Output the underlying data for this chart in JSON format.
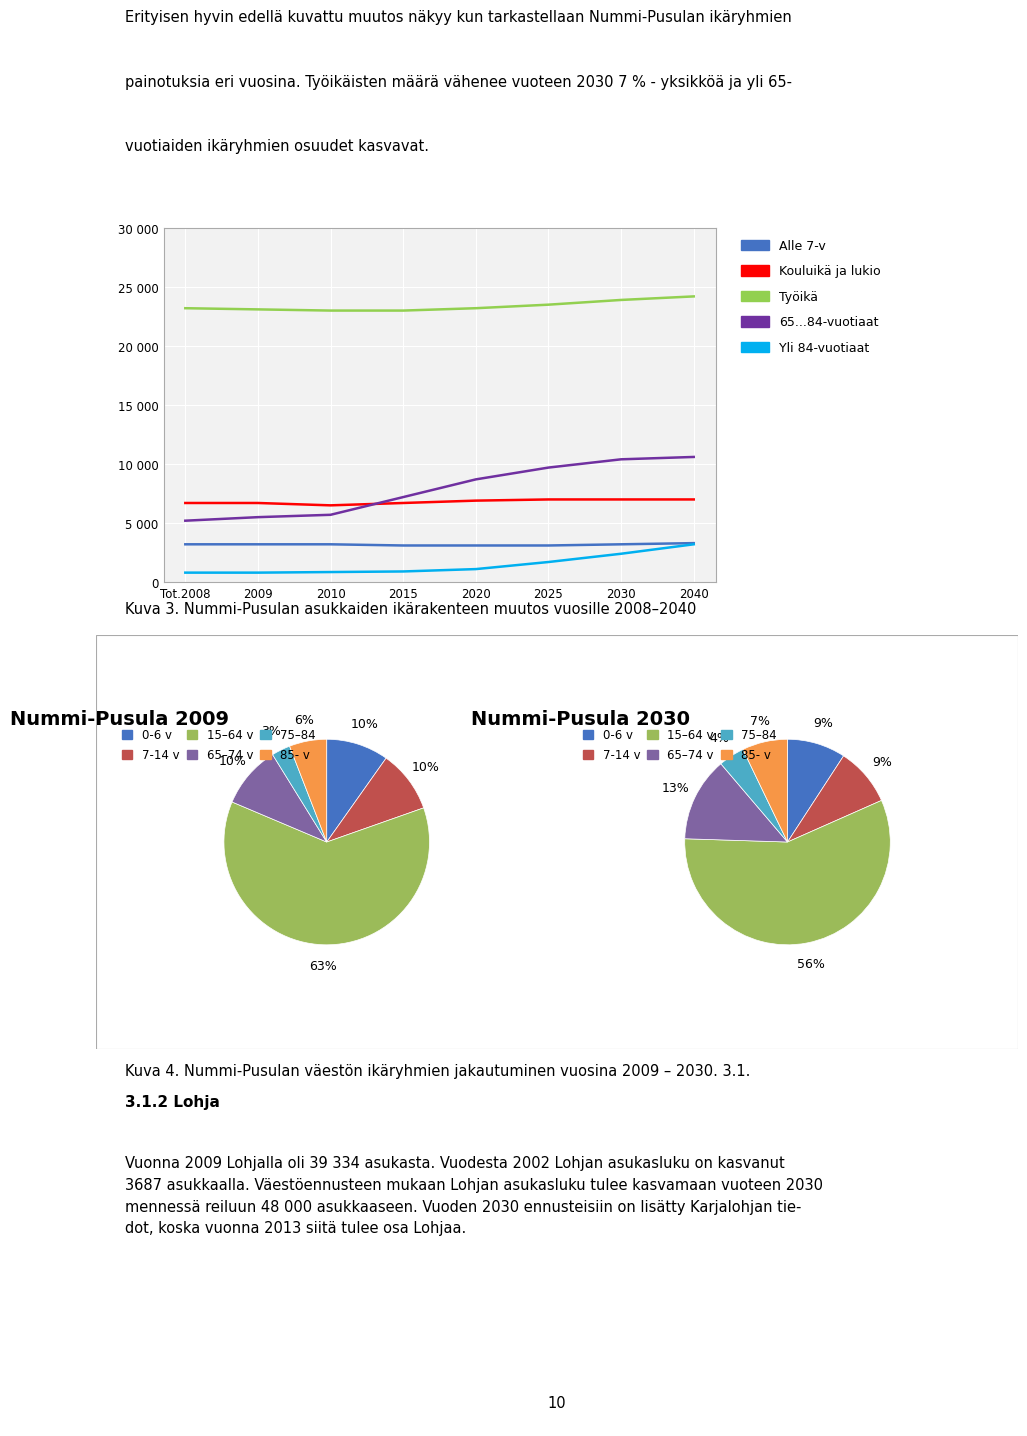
{
  "line_chart": {
    "x_labels": [
      "Tot.2008",
      "2009",
      "2010",
      "2015",
      "2020",
      "2025",
      "2030",
      "2040"
    ],
    "x_values": [
      0,
      1,
      2,
      3,
      4,
      5,
      6,
      7
    ],
    "series": [
      {
        "name": "Alle 7-v",
        "color": "#4472C4",
        "values": [
          3200,
          3200,
          3200,
          3100,
          3100,
          3100,
          3200,
          3300
        ]
      },
      {
        "name": "Kouluikä ja lukio",
        "color": "#FF0000",
        "values": [
          6700,
          6700,
          6500,
          6700,
          6900,
          7000,
          7000,
          7000
        ]
      },
      {
        "name": "Työikä",
        "color": "#92D050",
        "values": [
          23200,
          23100,
          23000,
          23000,
          23200,
          23500,
          23900,
          24200
        ]
      },
      {
        "name": "65...84-vuotiaat",
        "color": "#7030A0",
        "values": [
          5200,
          5500,
          5700,
          7200,
          8700,
          9700,
          10400,
          10600
        ]
      },
      {
        "name": "Yli 84-vuotiaat",
        "color": "#00B0F0",
        "values": [
          800,
          800,
          850,
          900,
          1100,
          1700,
          2400,
          3200
        ]
      }
    ],
    "ylim": [
      0,
      30000
    ],
    "yticks": [
      0,
      5000,
      10000,
      15000,
      20000,
      25000,
      30000
    ],
    "plot_bg_color": "#F2F2F2",
    "grid_color": "#FFFFFF"
  },
  "pie_2009": {
    "title": "Nummi-Pusula 2009",
    "labels": [
      "0-6 v",
      "7-14 v",
      "15–64 v",
      "65–74 v",
      "75–84",
      "85- v"
    ],
    "values": [
      10,
      10,
      63,
      10,
      3,
      6
    ],
    "pct_labels": [
      "10%",
      "10%",
      "63%",
      "10%",
      "3%",
      "6%"
    ],
    "colors": [
      "#4472C4",
      "#C0504D",
      "#9BBB59",
      "#8064A2",
      "#4BACC6",
      "#F79646"
    ]
  },
  "pie_2030": {
    "title": "Nummi-Pusula 2030",
    "labels": [
      "0-6 v",
      "7-14 v",
      "15–64 v",
      "65–74 v",
      "75–84",
      "85- v"
    ],
    "values": [
      9,
      9,
      56,
      13,
      4,
      7
    ],
    "pct_labels": [
      "9%",
      "9%",
      "56%",
      "13%",
      "4%",
      "7%"
    ],
    "colors": [
      "#4472C4",
      "#C0504D",
      "#9BBB59",
      "#8064A2",
      "#4BACC6",
      "#F79646"
    ]
  },
  "kuva3_caption": "Kuva 3. Nummi-Pusulan asukkaiden ikärakenteen muutos vuosille 2008–2040",
  "kuva4_caption": "Kuva 4. Nummi-Pusulan väestön ikäryhmien jakautuminen vuosina 2009 – 2030. 3.1.",
  "text_top_lines": [
    "Erityisen hyvin edellä kuvattu muutos näkyy kun tarkastellaan Nummi-Pusulan ikäryhmien",
    "painotuksia eri vuosina. Työikäisten määrä vähenee vuoteen 2030 7 % - yksikköä ja yli 65-",
    "vuotiaiden ikäryhmien osuudet kasvavat."
  ],
  "section_header": "3.1.2 Lohja",
  "text_bottom_lines": [
    "Vuonna 2009 Lohjalla oli 39 334 asukasta. Vuodesta 2002 Lohjan asukasluku on kasvanut",
    "3687 asukkaalla. Väestöennusteen mukaan Lohjan asukasluku tulee kasvamaan vuoteen 2030",
    "mennessä reiluun 48 000 asukkaaseen. Vuoden 2030 ennusteisiin on lisätty Karjalohjan tie-",
    "dot, koska vuonna 2013 siitä tulee osa Lohjaa."
  ],
  "page_number": "10"
}
